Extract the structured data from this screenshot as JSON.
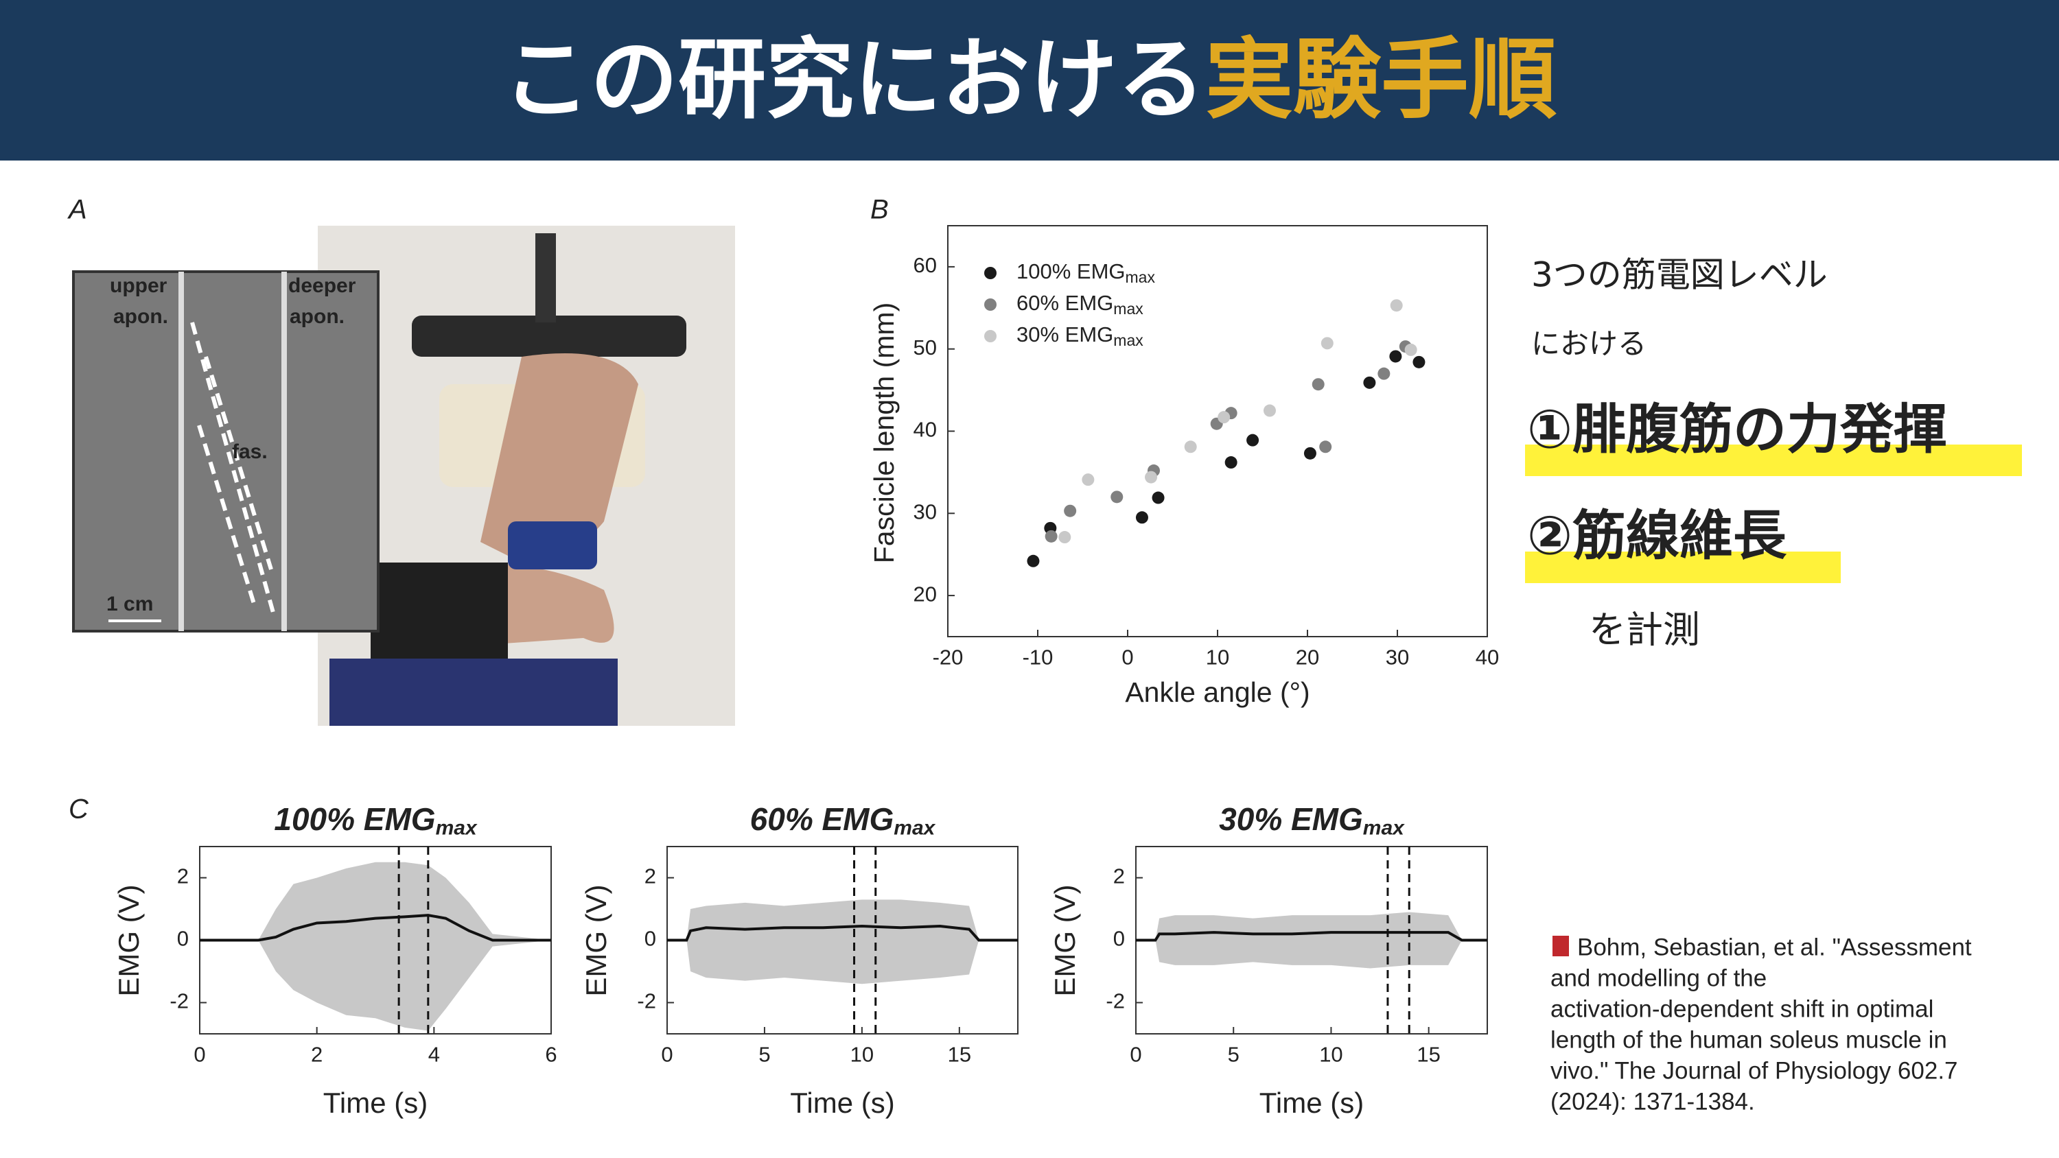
{
  "header": {
    "title_white": "この研究における",
    "title_gold": "実験手順"
  },
  "panels": {
    "a": "A",
    "b": "B",
    "c": "C"
  },
  "photo": {
    "upper_1": "upper",
    "upper_2": "apon.",
    "deeper_1": "deeper",
    "deeper_2": "apon.",
    "fas": "fas.",
    "scale": "1 cm"
  },
  "side": {
    "line1": "3つの筋電図レベル",
    "line2": "における",
    "item1": "①腓腹筋の力発揮",
    "item2": "②筋線維長",
    "line3": "を計測"
  },
  "citation": [
    "Bohm, Sebastian, et al. \"Assessment",
    "and modelling of the",
    "activation-dependent shift in optimal",
    "length of the human soleus muscle in",
    "vivo.\" The Journal of Physiology 602.7",
    "(2024): 1371-1384."
  ],
  "chart_data": [
    {
      "type": "scatter",
      "xlabel": "Ankle angle (°)",
      "ylabel": "Fascicle length (mm)",
      "xlim": [
        -20,
        40
      ],
      "ylim": [
        15,
        65
      ],
      "xticks": [
        -20,
        -10,
        0,
        10,
        20,
        30,
        40
      ],
      "yticks": [
        20,
        30,
        40,
        50,
        60
      ],
      "series": [
        {
          "name": "100% EMG",
          "name_sub": "max",
          "color": "#1a1a1a",
          "x": [
            -10.5,
            -8.6,
            1.6,
            3.4,
            11.5,
            13.9,
            20.3,
            26.9,
            29.8,
            32.4
          ],
          "y": [
            24.2,
            28.2,
            29.5,
            31.9,
            36.2,
            38.9,
            37.3,
            45.9,
            49.1,
            48.4
          ]
        },
        {
          "name": "60% EMG",
          "name_sub": "max",
          "color": "#808080",
          "x": [
            -8.5,
            -6.4,
            -1.2,
            2.9,
            9.9,
            11.5,
            21.2,
            22.0,
            28.5,
            30.9
          ],
          "y": [
            27.2,
            30.3,
            32.0,
            35.2,
            40.9,
            42.2,
            45.7,
            38.1,
            47.0,
            50.3
          ]
        },
        {
          "name": "30% EMG",
          "name_sub": "max",
          "color": "#c8c8c8",
          "x": [
            -7.0,
            -4.4,
            2.6,
            7.0,
            10.7,
            15.8,
            22.2,
            29.9,
            31.5
          ],
          "y": [
            27.1,
            34.1,
            34.4,
            38.1,
            41.7,
            42.5,
            50.7,
            55.3,
            49.9
          ]
        }
      ]
    },
    {
      "type": "emg",
      "title": "100% EMG",
      "title_sub": "max",
      "xlabel": "Time (s)",
      "ylabel": "EMG (V)",
      "xlim": [
        0,
        6
      ],
      "ylim": [
        -3,
        3
      ],
      "xticks": [
        0,
        2,
        4,
        6
      ],
      "yticks": [
        -2,
        0,
        2
      ],
      "raw_color": "#c8c8c8",
      "envelope_color": "#111111",
      "x": [
        0,
        1,
        1.3,
        1.6,
        2,
        2.5,
        3,
        3.5,
        3.9,
        4.2,
        4.6,
        5,
        6
      ],
      "raw_max": [
        0,
        0,
        1.0,
        1.8,
        2.0,
        2.3,
        2.5,
        2.5,
        2.4,
        2.0,
        1.2,
        0.2,
        0
      ],
      "raw_min": [
        0,
        0,
        -1.0,
        -1.6,
        -2.0,
        -2.4,
        -2.5,
        -2.8,
        -2.9,
        -2.2,
        -1.2,
        -0.2,
        0
      ],
      "envelope": [
        0,
        0,
        0.1,
        0.35,
        0.55,
        0.6,
        0.7,
        0.75,
        0.8,
        0.7,
        0.3,
        0,
        0
      ],
      "markers": [
        3.4,
        3.9
      ]
    },
    {
      "type": "emg",
      "title": "60% EMG",
      "title_sub": "max",
      "xlabel": "Time (s)",
      "ylabel": "EMG (V)",
      "xlim": [
        0,
        18
      ],
      "ylim": [
        -3,
        3
      ],
      "xticks": [
        0,
        5,
        10,
        15
      ],
      "yticks": [
        -2,
        0,
        2
      ],
      "raw_color": "#c8c8c8",
      "envelope_color": "#111111",
      "x": [
        0,
        1,
        1.2,
        2,
        4,
        6,
        8,
        10,
        12,
        14,
        15.5,
        16,
        18
      ],
      "raw_max": [
        0,
        0,
        1.0,
        1.1,
        1.2,
        1.1,
        1.2,
        1.3,
        1.3,
        1.2,
        1.1,
        0,
        0
      ],
      "raw_min": [
        0,
        0,
        -1.0,
        -1.2,
        -1.3,
        -1.2,
        -1.3,
        -1.4,
        -1.3,
        -1.2,
        -1.1,
        0,
        0
      ],
      "envelope": [
        0,
        0,
        0.3,
        0.4,
        0.35,
        0.4,
        0.4,
        0.45,
        0.4,
        0.45,
        0.35,
        0,
        0
      ],
      "markers": [
        9.6,
        10.7
      ]
    },
    {
      "type": "emg",
      "title": "30% EMG",
      "title_sub": "max",
      "xlabel": "Time (s)",
      "ylabel": "EMG (V)",
      "xlim": [
        0,
        18
      ],
      "ylim": [
        -3,
        3
      ],
      "xticks": [
        0,
        5,
        10,
        15
      ],
      "yticks": [
        -2,
        0,
        2
      ],
      "raw_color": "#c8c8c8",
      "envelope_color": "#111111",
      "x": [
        0,
        1,
        1.2,
        2,
        4,
        6,
        8,
        10,
        12,
        14,
        16,
        16.7,
        18
      ],
      "raw_max": [
        0,
        0,
        0.7,
        0.8,
        0.8,
        0.7,
        0.8,
        0.8,
        0.8,
        0.9,
        0.8,
        0,
        0
      ],
      "raw_min": [
        0,
        0,
        -0.7,
        -0.8,
        -0.8,
        -0.7,
        -0.8,
        -0.8,
        -0.9,
        -0.8,
        -0.8,
        0,
        0
      ],
      "envelope": [
        0,
        0,
        0.2,
        0.2,
        0.25,
        0.2,
        0.2,
        0.25,
        0.25,
        0.25,
        0.25,
        0,
        0
      ],
      "markers": [
        12.9,
        14.0
      ]
    }
  ]
}
